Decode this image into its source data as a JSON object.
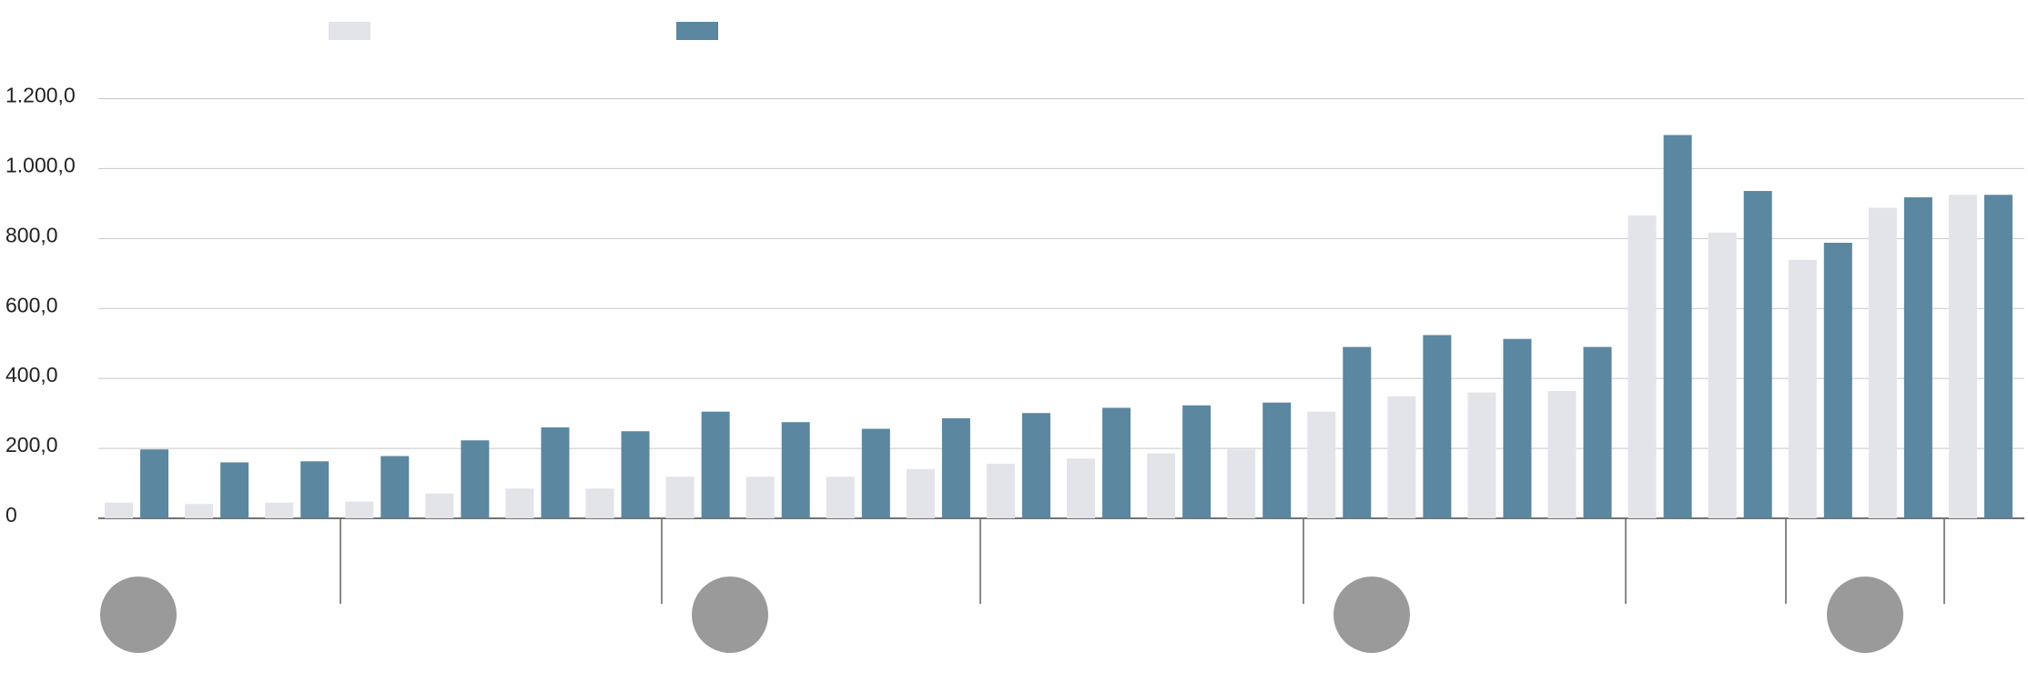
{
  "chart_data": {
    "type": "bar",
    "categories": [
      null,
      null,
      null,
      null,
      null,
      null,
      null,
      null,
      null,
      null,
      null,
      null,
      null,
      null,
      null,
      null,
      null,
      null,
      null,
      null,
      null,
      null,
      null,
      null
    ],
    "series": [
      {
        "color": "#e2e4ea",
        "values": [
          45,
          41,
          45,
          48,
          71,
          85,
          85,
          119,
          119,
          119,
          141,
          156,
          171,
          186,
          197,
          305,
          349,
          360,
          364,
          866,
          817,
          739,
          888,
          925
        ]
      },
      {
        "color": "#5b87a0",
        "values": [
          197,
          160,
          163,
          178,
          223,
          260,
          249,
          305,
          275,
          256,
          286,
          301,
          316,
          323,
          331,
          490,
          524,
          513,
          490,
          1096,
          936,
          788,
          918,
          925
        ]
      }
    ],
    "ylim": [
      0,
      1280
    ],
    "yticks": [
      0,
      {
        "value": 200,
        "label": "200,0"
      },
      {
        "value": 400,
        "label": "400,0"
      },
      {
        "value": 600,
        "label": "600,0"
      },
      {
        "value": 800,
        "label": "800,0"
      },
      {
        "value": 1000,
        "label": "1.000,0"
      },
      {
        "value": 1200,
        "label": "1.200,0"
      }
    ],
    "grid": true
  }
}
